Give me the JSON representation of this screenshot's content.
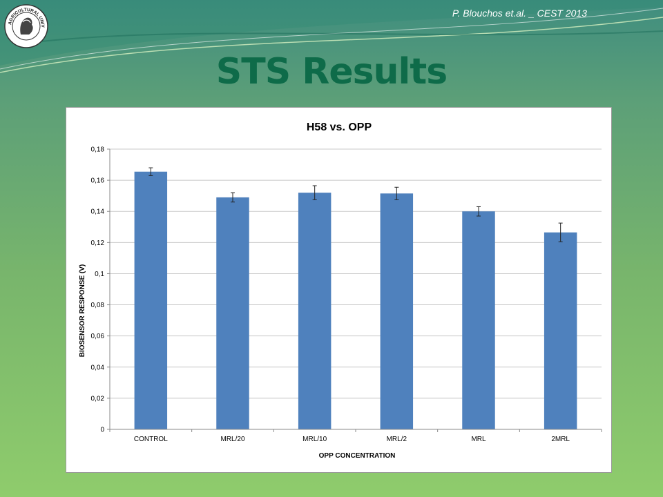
{
  "slide": {
    "credit": "P. Blouchos et.al. _  CEST 2013",
    "title": "STS Results",
    "logo_text": "AGRICULTURAL UNIVERSITY OF ATHENS"
  },
  "colors": {
    "title": "#0e6b49",
    "bar": "#4f81bd",
    "background_top": "#3f8d7f",
    "background_bottom": "#8fcc6c"
  },
  "chart_data": {
    "type": "bar",
    "title": "H58 vs. OPP",
    "xlabel": "OPP CONCENTRATION",
    "ylabel": "BIOSENSOR RESPONSE (V)",
    "categories": [
      "CONTROL",
      "MRL/20",
      "MRL/10",
      "MRL/2",
      "MRL",
      "2MRL"
    ],
    "values": [
      0.1655,
      0.149,
      0.152,
      0.1515,
      0.14,
      0.1265
    ],
    "errors": [
      0.0025,
      0.003,
      0.0045,
      0.004,
      0.003,
      0.006
    ],
    "ylim": [
      0,
      0.18
    ],
    "yticks": [
      "0",
      "0,02",
      "0,04",
      "0,06",
      "0,08",
      "0,1",
      "0,12",
      "0,14",
      "0,16",
      "0,18"
    ],
    "grid": true,
    "legend": "none"
  }
}
